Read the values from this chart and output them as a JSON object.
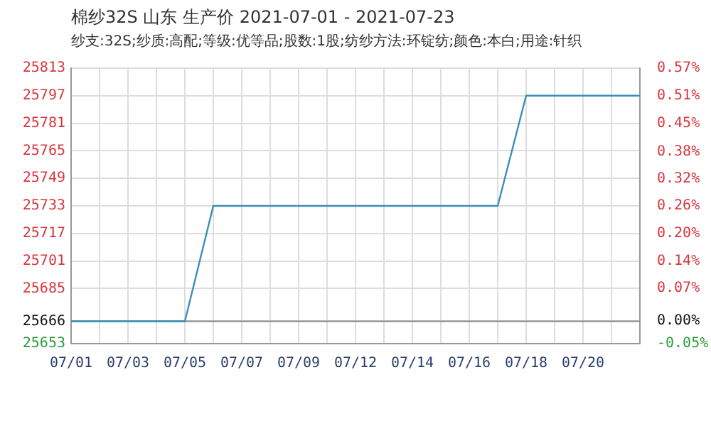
{
  "chart_data": {
    "type": "line",
    "title": "棉纱32S 山东 生产价 2021-07-01 - 2021-07-23",
    "subtitle": "纱支:32S;纱质:高配;等级:优等品;股数:1股;纺纱方法:环锭纺;颜色:本白;用途:针织",
    "categories": [
      "07/01",
      null,
      "07/03",
      null,
      "07/05",
      null,
      "07/07",
      null,
      "07/09",
      null,
      "07/12",
      null,
      "07/14",
      null,
      "07/16",
      null,
      "07/18",
      null,
      "07/20",
      null,
      null
    ],
    "series": [
      {
        "color": "#3a8fb7",
        "values": [
          25666,
          25666,
          25666,
          25666,
          25666,
          25733,
          25733,
          25733,
          25733,
          25733,
          25733,
          25733,
          25733,
          25733,
          25733,
          25733,
          25797,
          25797,
          25797,
          25797,
          25797
        ]
      }
    ],
    "ylim": [
      25653,
      25813
    ],
    "yticks": [
      25653,
      25666,
      25685,
      25701,
      25717,
      25733,
      25749,
      25765,
      25781,
      25797,
      25813
    ],
    "y2lim": [
      -0.051,
      0.573
    ],
    "y2ticks": [
      {
        "value": -0.051,
        "label": "-0.05%"
      },
      {
        "value": 0,
        "label": "0.00%"
      },
      {
        "value": 0.074,
        "label": "0.07%"
      },
      {
        "value": 0.136,
        "label": "0.14%"
      },
      {
        "value": 0.199,
        "label": "0.20%"
      },
      {
        "value": 0.261,
        "label": "0.26%"
      },
      {
        "value": 0.323,
        "label": "0.32%"
      },
      {
        "value": 0.384,
        "label": "0.38%"
      },
      {
        "value": 0.448,
        "label": "0.45%"
      },
      {
        "value": 0.51,
        "label": "0.51%"
      },
      {
        "value": 0.573,
        "label": "0.57%"
      }
    ],
    "ref_lines": [
      {
        "axis": "y",
        "value": 25666,
        "color": "#888888"
      }
    ],
    "grid": true,
    "legend": false,
    "marker": "none",
    "line_style": "solid"
  }
}
